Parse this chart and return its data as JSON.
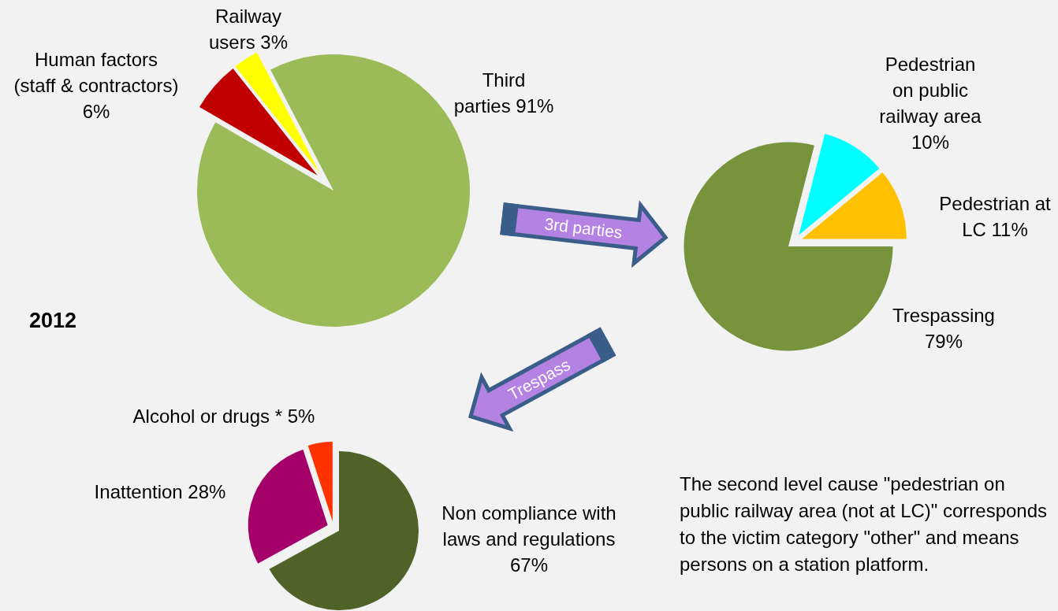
{
  "chart_data": [
    {
      "type": "pie",
      "categories": [
        "Third parties",
        "Human factors (staff & contractors)",
        "Railway users"
      ],
      "values": [
        91,
        6,
        3
      ],
      "value_labels": [
        "91%",
        "6%",
        "3%"
      ],
      "colors": [
        "#9bbb59",
        "#c00000",
        "#ffff00"
      ],
      "annotations": [
        "2012",
        "3rd parties"
      ]
    },
    {
      "type": "pie",
      "categories": [
        "Trespassing",
        "Pedestrian on public railway area",
        "Pedestrian at LC"
      ],
      "values": [
        79,
        10,
        11
      ],
      "value_labels": [
        "79%",
        "10%",
        "11%"
      ],
      "colors": [
        "#77933c",
        "#00ffff",
        "#ffc000"
      ],
      "annotations": [
        "The second level cause \"pedestrian on public railway area (not at LC)\" corresponds to the victim category \"other\" and means persons on a station platform."
      ]
    },
    {
      "type": "pie",
      "categories": [
        "Non compliance with laws and regulations",
        "Inattention",
        "Alcohol or drugs *"
      ],
      "values": [
        67,
        28,
        5
      ],
      "value_labels": [
        "67%",
        "28%",
        "5%"
      ],
      "colors": [
        "#4f6228",
        "#a50069",
        "#ff3300"
      ],
      "annotations": [
        "Trespass"
      ]
    }
  ]
}
